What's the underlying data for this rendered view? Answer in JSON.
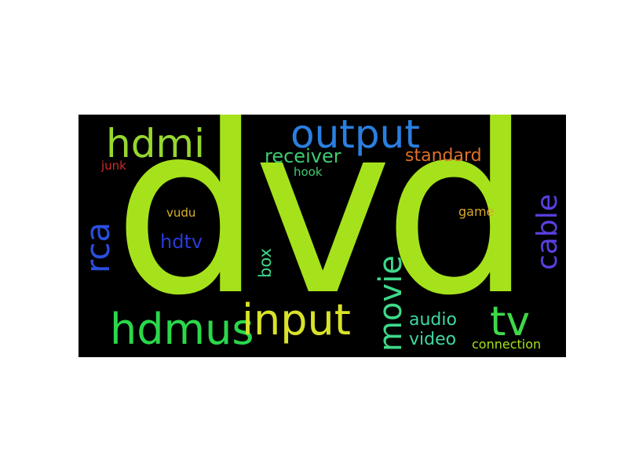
{
  "words": [
    {
      "text": "dvd",
      "color": "#a6e21b"
    },
    {
      "text": "output",
      "color": "#2a7fe0"
    },
    {
      "text": "hdmi",
      "color": "#97d72e"
    },
    {
      "text": "receiver",
      "color": "#3ecb6e"
    },
    {
      "text": "standard",
      "color": "#e0702a"
    },
    {
      "text": "junk",
      "color": "#d02a2a"
    },
    {
      "text": "hook",
      "color": "#3ecb6e"
    },
    {
      "text": "rca",
      "color": "#2a4fe0"
    },
    {
      "text": "cable",
      "color": "#5a3fe0"
    },
    {
      "text": "vudu",
      "color": "#d8b22a"
    },
    {
      "text": "game",
      "color": "#d8a82a"
    },
    {
      "text": "hdtv",
      "color": "#2a3ad8"
    },
    {
      "text": "box",
      "color": "#3ed88a"
    },
    {
      "text": "movie",
      "color": "#3ed88a"
    },
    {
      "text": "hdmus",
      "color": "#2ad84a"
    },
    {
      "text": "input",
      "color": "#d8e22a"
    },
    {
      "text": "tv",
      "color": "#3ed84a"
    },
    {
      "text": "audio",
      "color": "#3ed8a0"
    },
    {
      "text": "video",
      "color": "#3ed8a0"
    },
    {
      "text": "connection",
      "color": "#a6e21b"
    }
  ]
}
